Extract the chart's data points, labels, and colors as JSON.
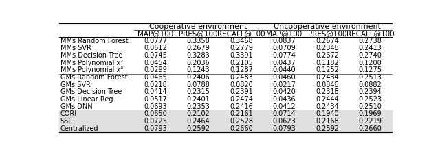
{
  "title_cooperative": "Cooperative environment",
  "title_uncooperative": "Uncooperative environment",
  "col_headers": [
    "MAP@100",
    "PRES@100",
    "RECALL@100",
    "MAP@100",
    "PRES@100",
    "RECALL@100"
  ],
  "row_labels": [
    "MMs Random Forest",
    "MMs SVR",
    "MMs Decision Tree",
    "MMs Polynomial x²",
    "MMs Polynomial x³",
    "GMs Random Forest",
    "GMs SVR",
    "GMs Decision Tree",
    "GMs Linear Reg.",
    "GMs DNN",
    "CORI",
    "SSL",
    "Centralized"
  ],
  "data": [
    [
      0.0777,
      0.3358,
      0.3468,
      0.0837,
      0.2674,
      0.2738
    ],
    [
      0.0612,
      0.2679,
      0.2779,
      0.0709,
      0.2348,
      0.2413
    ],
    [
      0.0745,
      0.3283,
      0.3391,
      0.0774,
      0.2672,
      0.274
    ],
    [
      0.0454,
      0.2036,
      0.2105,
      0.0437,
      0.1182,
      0.12
    ],
    [
      0.0299,
      0.1243,
      0.1287,
      0.044,
      0.1252,
      0.1275
    ],
    [
      0.0465,
      0.2406,
      0.2483,
      0.046,
      0.2434,
      0.2513
    ],
    [
      0.0218,
      0.0788,
      0.082,
      0.0217,
      0.0846,
      0.0882
    ],
    [
      0.0414,
      0.2315,
      0.2391,
      0.042,
      0.2318,
      0.2394
    ],
    [
      0.0517,
      0.2401,
      0.2474,
      0.0436,
      0.2444,
      0.2523
    ],
    [
      0.0693,
      0.2353,
      0.2416,
      0.0412,
      0.2434,
      0.251
    ],
    [
      0.065,
      0.2102,
      0.2161,
      0.0714,
      0.194,
      0.1969
    ],
    [
      0.0725,
      0.2464,
      0.2528,
      0.0623,
      0.2168,
      0.2219
    ],
    [
      0.0793,
      0.2592,
      0.266,
      0.0793,
      0.2592,
      0.266
    ]
  ],
  "highlight_rows": [
    10,
    11,
    12
  ],
  "highlight_color": "#e0e0e0",
  "font_size": 7.0,
  "header_font_size": 7.5,
  "group_font_size": 8.0
}
